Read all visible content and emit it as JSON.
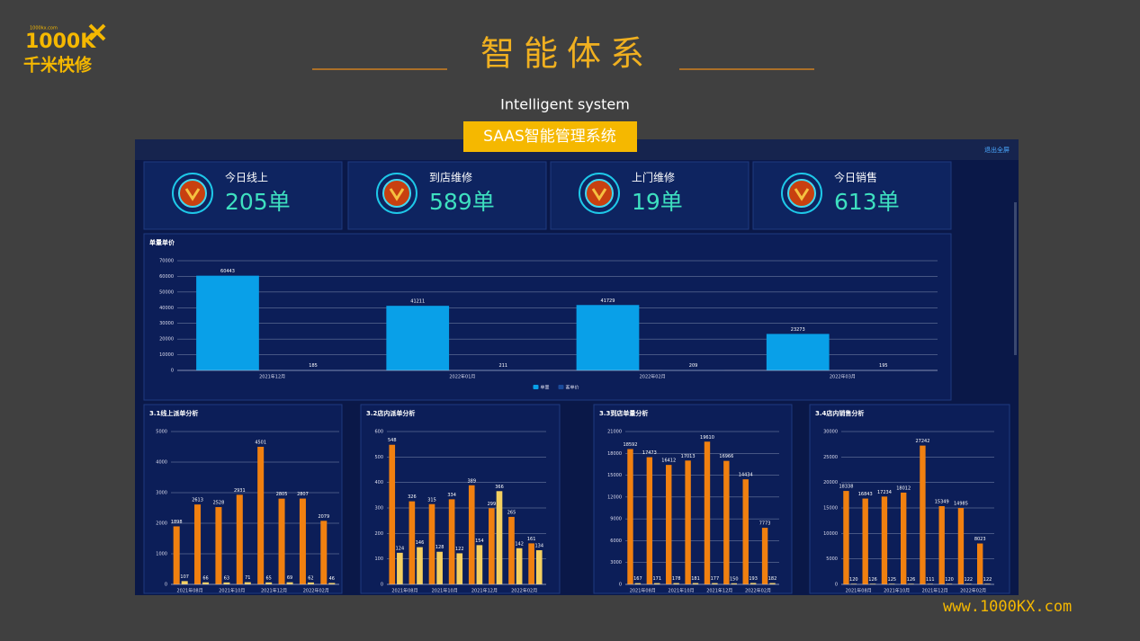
{
  "header": {
    "logo_site": "1000kx.com",
    "logo_mark": "1000K",
    "logo_name": "千米快修",
    "title": "智能体系",
    "subtitle": "Intelligent system",
    "badge": "SAAS智能管理系统",
    "footer": "www.1000KX.com"
  },
  "dashboard": {
    "exit_button": "退出全屏",
    "kpis": [
      {
        "label": "今日线上",
        "value": "205单"
      },
      {
        "label": "到店维修",
        "value": "589单"
      },
      {
        "label": "上门维修",
        "value": "19单"
      },
      {
        "label": "今日销售",
        "value": "613单"
      }
    ]
  },
  "chart_data": [
    {
      "type": "bar",
      "title": "单量单价",
      "categories": [
        "2021年12月",
        "2022年01月",
        "2022年02月",
        "2022年03月"
      ],
      "series": [
        {
          "name": "单量",
          "color": "#09a0e8",
          "values": [
            60443,
            41211,
            41729,
            23273
          ]
        },
        {
          "name": "客单价",
          "color": "#1a4a9a",
          "values": [
            185,
            211,
            209,
            195
          ]
        }
      ],
      "ylim": [
        0,
        70000
      ],
      "yticks": [
        0,
        10000,
        20000,
        30000,
        40000,
        50000,
        60000,
        70000
      ],
      "grid": true,
      "legend": "bottom"
    },
    {
      "type": "bar",
      "title": "3.1线上派单分析",
      "categories": [
        "2021年08月",
        null,
        "2021年10月",
        null,
        "2021年12月",
        null,
        "2022年02月",
        null
      ],
      "series": [
        {
          "color": "#f08010",
          "values": [
            1898,
            2613,
            2528,
            2931,
            4501,
            2805,
            2807,
            2079
          ]
        },
        {
          "color": "#f5d060",
          "values": [
            107,
            66,
            63,
            71,
            65,
            69,
            62,
            46
          ]
        }
      ],
      "ylim": [
        0,
        5000
      ],
      "yticks": [
        0,
        1000,
        2000,
        3000,
        4000,
        5000
      ],
      "grid": true
    },
    {
      "type": "bar",
      "title": "3.2店内派单分析",
      "categories": [
        "2021年08月",
        null,
        "2021年10月",
        null,
        "2021年12月",
        null,
        "2022年02月",
        null
      ],
      "series": [
        {
          "color": "#f08010",
          "values": [
            548,
            326,
            315,
            334,
            389,
            299,
            265,
            161
          ]
        },
        {
          "color": "#f5d060",
          "values": [
            124,
            146,
            128,
            122,
            154,
            366,
            142,
            134
          ]
        }
      ],
      "ylim": [
        0,
        600
      ],
      "yticks": [
        0,
        100,
        200,
        300,
        400,
        500,
        600
      ],
      "grid": true
    },
    {
      "type": "bar",
      "title": "3.3到店单量分析",
      "categories": [
        "2021年08月",
        null,
        "2021年10月",
        null,
        "2021年12月",
        null,
        "2022年02月",
        null
      ],
      "series": [
        {
          "color": "#f08010",
          "values": [
            18592,
            17473,
            16412,
            17013,
            19610,
            16966,
            14434,
            7773
          ]
        },
        {
          "color": "#f5d060",
          "values": [
            167,
            171,
            178,
            181,
            177,
            150,
            193,
            182
          ]
        }
      ],
      "ylim": [
        0,
        21000
      ],
      "yticks": [
        0,
        3000,
        6000,
        9000,
        12000,
        15000,
        18000,
        21000
      ],
      "grid": true
    },
    {
      "type": "bar",
      "title": "3.4店内销售分析",
      "categories": [
        "2021年08月",
        null,
        "2021年10月",
        null,
        "2021年12月",
        null,
        "2022年02月",
        null
      ],
      "series": [
        {
          "color": "#f08010",
          "values": [
            18338,
            16843,
            17234,
            18012,
            27242,
            15349,
            14985,
            8023
          ]
        },
        {
          "color": "#f5d060",
          "values": [
            120,
            126,
            125,
            126,
            111,
            120,
            122,
            122
          ]
        }
      ],
      "ylim": [
        0,
        30000
      ],
      "yticks": [
        0,
        5000,
        10000,
        15000,
        20000,
        25000,
        30000
      ],
      "grid": true
    }
  ]
}
